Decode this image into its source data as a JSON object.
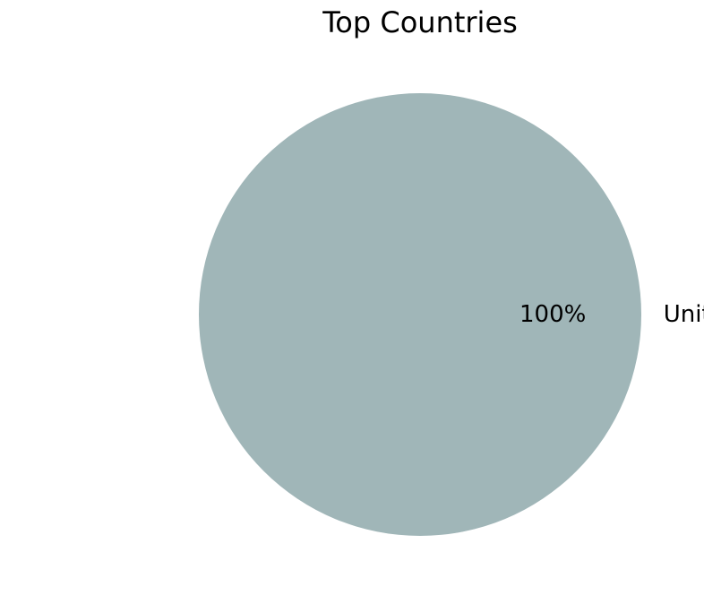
{
  "chart_data": {
    "type": "pie",
    "title": "Top Countries",
    "slices": [
      {
        "label": "United States",
        "value": 100,
        "percent_label": "100%",
        "color": "#a0b6b8"
      }
    ],
    "legend": "none"
  }
}
